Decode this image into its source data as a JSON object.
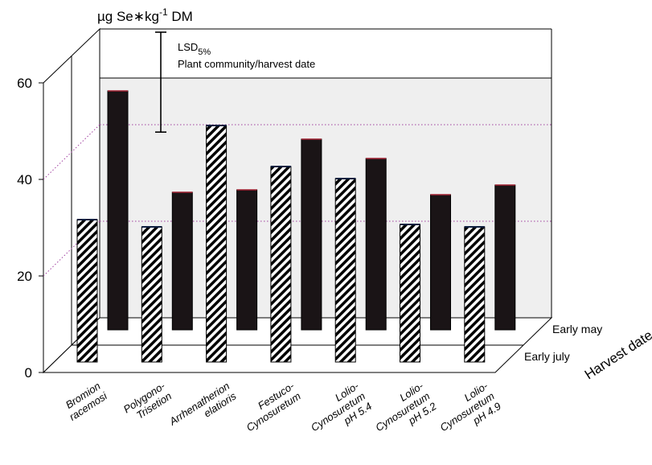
{
  "chart_data": {
    "type": "bar",
    "title": "",
    "ylabel": "µg Se∗kg-1 DM",
    "ylabel_parts": {
      "main": "µg Se∗kg",
      "sup": "-1",
      "tail": " DM"
    },
    "ylim": [
      0,
      60
    ],
    "yticks": [
      "0",
      "20",
      "40",
      "60"
    ],
    "depth_axis_label": "Harvest date",
    "categories": [
      [
        "Bromion",
        "racemosi"
      ],
      [
        "Polygono-",
        "Trisetion"
      ],
      [
        "Arrhenatherion",
        "elatioris"
      ],
      [
        "Festuco-",
        "Cynosuretum"
      ],
      [
        "Lolio-",
        "Cynosuretum",
        "pH 5.4"
      ],
      [
        "Lolio-",
        "Cynosuretum",
        "pH 5.2"
      ],
      [
        "Lolio-",
        "Cynosuretum",
        "pH 4.9"
      ]
    ],
    "series": [
      {
        "name": "Early july",
        "values": [
          29.5,
          28,
          49,
          40.5,
          38,
          28.5,
          28
        ],
        "pattern": "hatched"
      },
      {
        "name": "Early may",
        "values": [
          49.5,
          28.5,
          29,
          39.5,
          35.5,
          28,
          30
        ],
        "color": "#1a1416"
      }
    ],
    "annotation": {
      "lsd_label_main": "LSD",
      "lsd_label_sub": "5%",
      "lsd_label_line2": "Plant community/harvest date",
      "lsd_value": 20.7
    },
    "grid": true
  }
}
